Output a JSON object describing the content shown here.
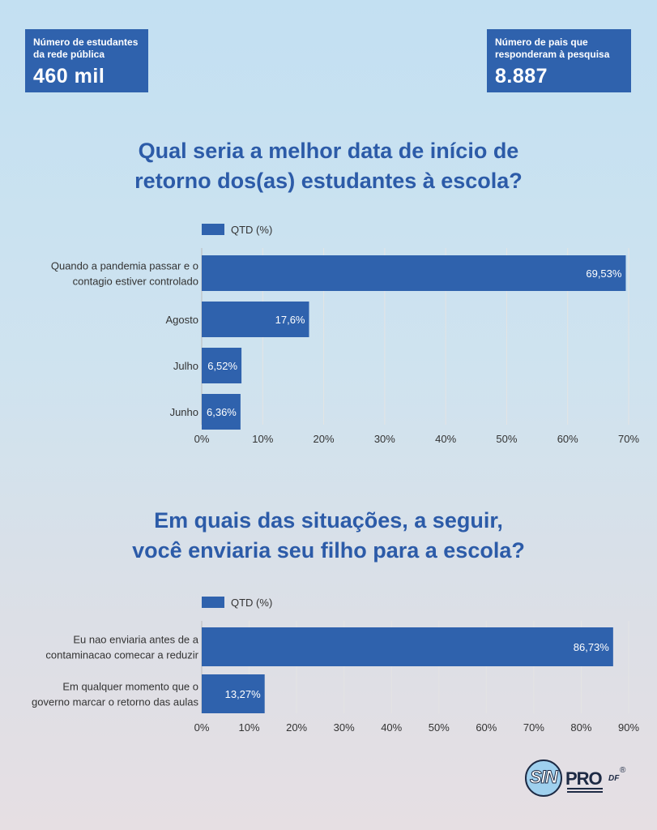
{
  "stats": {
    "left": {
      "label_line1": "Número de estudantes",
      "label_line2": "da rede pública",
      "value": "460 mil"
    },
    "right": {
      "label_line1": "Número de pais que",
      "label_line2": "responderam à pesquisa",
      "value": "8.887"
    }
  },
  "titles": {
    "chart1_line1": "Qual seria a melhor data de início de",
    "chart1_line2": "retorno dos(as) estudantes à escola?",
    "chart2_line1": "Em quais das situações, a seguir,",
    "chart2_line2": "você enviaria seu filho para a escola?"
  },
  "logo": {
    "sin": "SIN",
    "pro": "PRO",
    "df": "DF",
    "registered": "®"
  },
  "colors": {
    "bar": "#2f62ad",
    "title": "#2c5ba8",
    "grid": "#e4e4e4"
  },
  "chart_data": [
    {
      "type": "bar",
      "orientation": "horizontal",
      "title": "Qual seria a melhor data de início de retorno dos(as) estudantes à escola?",
      "categories": [
        [
          "Quando a pandemia passar e o",
          "contagio estiver controlado"
        ],
        [
          "Agosto"
        ],
        [
          "Julho"
        ],
        [
          "Junho"
        ]
      ],
      "series": [
        {
          "name": "QTD (%)",
          "values": [
            69.53,
            17.6,
            6.52,
            6.36
          ]
        }
      ],
      "data_labels": [
        "69,53%",
        "17,6%",
        "6,52%",
        "6,36%"
      ],
      "xlim": [
        0,
        70
      ],
      "ticks": [
        "0%",
        "10%",
        "20%",
        "30%",
        "40%",
        "50%",
        "60%",
        "70%"
      ],
      "grid": true,
      "legend": "top-left"
    },
    {
      "type": "bar",
      "orientation": "horizontal",
      "title": "Em quais das situações, a seguir, você enviaria seu filho para a escola?",
      "categories": [
        [
          "Eu nao enviaria antes de a",
          "contaminacao comecar a reduzir"
        ],
        [
          "Em qualquer momento que o",
          "governo marcar o retorno das aulas"
        ]
      ],
      "series": [
        {
          "name": "QTD (%)",
          "values": [
            86.73,
            13.27
          ]
        }
      ],
      "data_labels": [
        "86,73%",
        "13,27%"
      ],
      "xlim": [
        0,
        90
      ],
      "ticks": [
        "0%",
        "10%",
        "20%",
        "30%",
        "40%",
        "50%",
        "60%",
        "70%",
        "80%",
        "90%"
      ],
      "grid": true,
      "legend": "top-left"
    }
  ]
}
